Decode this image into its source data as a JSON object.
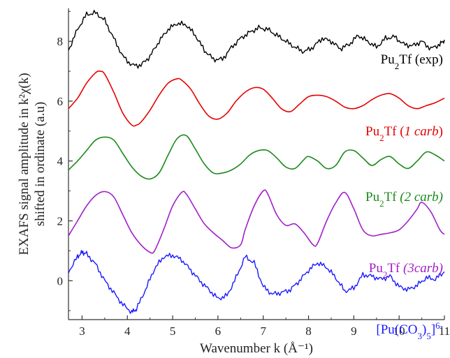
{
  "chart_data": {
    "type": "line",
    "xlabel": "Wavenumber k (Å⁻¹)",
    "ylabel_line1": "EXAFS signal amplitude in k²χ(k)",
    "ylabel_line2": "shifted in ordinate (a.u)",
    "xlim": [
      2.7,
      11.0
    ],
    "ylim": [
      -1.3,
      9.1
    ],
    "x_ticks": [
      3,
      4,
      5,
      6,
      7,
      8,
      9,
      10,
      11
    ],
    "y_ticks": [
      0,
      2,
      4,
      6,
      8
    ],
    "grid": false,
    "series": [
      {
        "name": "Pu2Tf (exp)",
        "label_parts": [
          {
            "t": "Pu",
            "s": "normal"
          },
          {
            "t": "2",
            "s": "sub"
          },
          {
            "t": "Tf (exp)",
            "s": "normal"
          }
        ],
        "color": "#000000",
        "noisy": true,
        "x": [
          2.7,
          2.9,
          3.1,
          3.3,
          3.5,
          3.7,
          3.9,
          4.1,
          4.3,
          4.5,
          4.7,
          4.9,
          5.1,
          5.3,
          5.5,
          5.7,
          5.9,
          6.1,
          6.3,
          6.5,
          6.7,
          6.9,
          7.1,
          7.3,
          7.5,
          7.7,
          7.9,
          8.1,
          8.3,
          8.5,
          8.7,
          8.9,
          9.1,
          9.3,
          9.5,
          9.7,
          9.9,
          10.1,
          10.3,
          10.5,
          10.7,
          10.9,
          11.0
        ],
        "y": [
          7.7,
          8.4,
          8.9,
          8.95,
          8.7,
          8.1,
          7.5,
          7.2,
          7.2,
          7.5,
          8.0,
          8.4,
          8.6,
          8.55,
          8.2,
          7.7,
          7.4,
          7.4,
          7.8,
          8.1,
          8.3,
          8.45,
          8.4,
          8.2,
          8.0,
          7.8,
          7.65,
          7.8,
          8.1,
          8.0,
          7.75,
          7.9,
          8.2,
          8.0,
          7.8,
          8.1,
          8.15,
          7.9,
          7.85,
          8.0,
          7.75,
          7.9,
          8.05
        ]
      },
      {
        "name": "Pu2Tf (1 carb)",
        "label_parts": [
          {
            "t": "Pu",
            "s": "normal"
          },
          {
            "t": "2",
            "s": "sub"
          },
          {
            "t": "Tf (",
            "s": "normal"
          },
          {
            "t": "1 carb",
            "s": "italic"
          },
          {
            "t": ")",
            "s": "normal"
          }
        ],
        "color": "#e60000",
        "noisy": false,
        "x": [
          2.7,
          2.9,
          3.1,
          3.3,
          3.4,
          3.5,
          3.7,
          3.9,
          4.1,
          4.2,
          4.3,
          4.5,
          4.7,
          4.9,
          5.1,
          5.2,
          5.4,
          5.6,
          5.8,
          6.0,
          6.2,
          6.4,
          6.6,
          6.8,
          7.0,
          7.2,
          7.4,
          7.6,
          7.8,
          8.0,
          8.2,
          8.4,
          8.6,
          8.8,
          9.0,
          9.2,
          9.4,
          9.6,
          9.8,
          10.0,
          10.2,
          10.4,
          10.6,
          10.8,
          11.0
        ],
        "y": [
          5.75,
          6.1,
          6.6,
          6.95,
          7.0,
          6.9,
          6.3,
          5.6,
          5.2,
          5.2,
          5.3,
          5.7,
          6.2,
          6.6,
          6.75,
          6.7,
          6.4,
          5.9,
          5.5,
          5.4,
          5.6,
          6.0,
          6.3,
          6.45,
          6.4,
          6.1,
          5.75,
          5.65,
          5.9,
          6.15,
          6.2,
          6.15,
          6.0,
          5.8,
          5.75,
          5.85,
          6.05,
          6.2,
          6.25,
          6.1,
          5.85,
          5.75,
          5.85,
          5.95,
          6.1
        ]
      },
      {
        "name": "Pu2Tf (2 carb)",
        "label_parts": [
          {
            "t": "Pu",
            "s": "normal"
          },
          {
            "t": "2",
            "s": "sub"
          },
          {
            "t": "Tf ",
            "s": "normal"
          },
          {
            "t": "(2 carb)",
            "s": "italic"
          }
        ],
        "color": "#1a8a1a",
        "noisy": false,
        "x": [
          2.7,
          2.9,
          3.1,
          3.3,
          3.5,
          3.7,
          3.9,
          4.1,
          4.3,
          4.5,
          4.7,
          4.9,
          5.1,
          5.3,
          5.5,
          5.7,
          5.9,
          6.1,
          6.3,
          6.5,
          6.7,
          6.9,
          7.1,
          7.3,
          7.5,
          7.7,
          7.9,
          8.0,
          8.2,
          8.4,
          8.6,
          8.8,
          9.0,
          9.2,
          9.4,
          9.6,
          9.8,
          10.0,
          10.2,
          10.4,
          10.6,
          10.8,
          11.0
        ],
        "y": [
          3.7,
          4.0,
          4.35,
          4.7,
          4.8,
          4.7,
          4.25,
          3.8,
          3.5,
          3.4,
          3.6,
          4.2,
          4.75,
          4.85,
          4.4,
          3.9,
          3.6,
          3.6,
          3.7,
          3.9,
          4.2,
          4.35,
          4.35,
          4.1,
          3.8,
          3.75,
          4.05,
          4.15,
          4.0,
          3.75,
          3.85,
          4.3,
          4.35,
          4.1,
          3.85,
          4.05,
          4.15,
          3.9,
          3.75,
          4.0,
          4.3,
          4.2,
          4.0
        ]
      },
      {
        "name": "Pu2Tf (3carb)",
        "label_parts": [
          {
            "t": "Pu",
            "s": "normal"
          },
          {
            "t": "2",
            "s": "sub"
          },
          {
            "t": "Tf ",
            "s": "normal"
          },
          {
            "t": "(3carb)",
            "s": "italic"
          }
        ],
        "color": "#a020c8",
        "noisy": false,
        "x": [
          2.7,
          2.9,
          3.1,
          3.3,
          3.5,
          3.7,
          3.9,
          4.1,
          4.3,
          4.5,
          4.6,
          4.8,
          5.0,
          5.2,
          5.3,
          5.5,
          5.7,
          5.9,
          6.1,
          6.3,
          6.5,
          6.6,
          6.8,
          7.0,
          7.1,
          7.3,
          7.5,
          7.7,
          7.9,
          8.1,
          8.2,
          8.4,
          8.6,
          8.8,
          9.0,
          9.2,
          9.4,
          9.6,
          9.8,
          10.0,
          10.2,
          10.4,
          10.5,
          10.7,
          10.9,
          11.0
        ],
        "y": [
          1.5,
          2.0,
          2.5,
          2.85,
          2.98,
          2.8,
          2.2,
          1.6,
          1.2,
          0.95,
          1.0,
          1.7,
          2.5,
          2.95,
          2.9,
          2.4,
          1.9,
          1.6,
          1.35,
          1.1,
          1.2,
          1.7,
          2.5,
          3.0,
          2.9,
          2.2,
          1.85,
          1.9,
          1.6,
          1.2,
          1.25,
          2.0,
          2.6,
          2.95,
          2.4,
          1.7,
          1.5,
          1.55,
          1.6,
          1.7,
          2.0,
          2.4,
          2.62,
          2.3,
          1.7,
          1.55
        ]
      },
      {
        "name": "[Pu(CO3)5]6-",
        "label_parts": [
          {
            "t": "[Pu(CO",
            "s": "normal"
          },
          {
            "t": "3",
            "s": "sub"
          },
          {
            "t": ")",
            "s": "normal"
          },
          {
            "t": "5",
            "s": "sub"
          },
          {
            "t": "]",
            "s": "normal"
          },
          {
            "t": "6-",
            "s": "sup"
          }
        ],
        "color": "#1a1aff",
        "noisy": true,
        "x": [
          2.7,
          2.9,
          3.0,
          3.1,
          3.3,
          3.5,
          3.7,
          3.9,
          4.1,
          4.2,
          4.4,
          4.6,
          4.8,
          5.0,
          5.2,
          5.4,
          5.6,
          5.8,
          6.0,
          6.2,
          6.4,
          6.6,
          6.8,
          7.0,
          7.2,
          7.4,
          7.6,
          7.8,
          8.0,
          8.2,
          8.4,
          8.6,
          8.8,
          9.0,
          9.2,
          9.4,
          9.6,
          9.8,
          10.0,
          10.2,
          10.4,
          10.6,
          10.8,
          11.0
        ],
        "y": [
          0.3,
          0.8,
          0.95,
          0.9,
          0.55,
          0.0,
          -0.4,
          -0.8,
          -1.05,
          -0.95,
          -0.3,
          0.4,
          0.8,
          0.85,
          0.7,
          0.35,
          0.0,
          -0.3,
          -0.6,
          -0.5,
          0.1,
          0.8,
          0.6,
          -0.2,
          -0.45,
          -0.4,
          -0.3,
          0.0,
          0.35,
          0.6,
          0.45,
          0.1,
          -0.35,
          -0.25,
          0.2,
          0.15,
          0.05,
          0.15,
          -0.2,
          -0.3,
          -0.15,
          0.1,
          0.05,
          0.3
        ]
      }
    ]
  }
}
